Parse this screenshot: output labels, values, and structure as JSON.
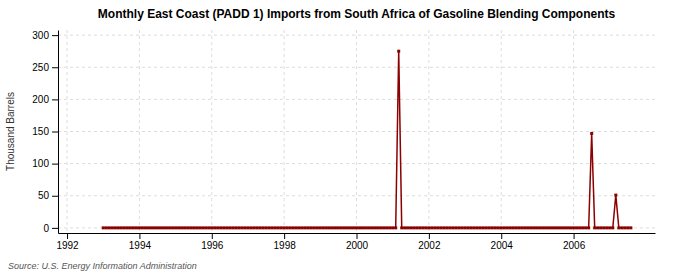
{
  "chart_data": {
    "type": "line",
    "title": "Monthly East Coast (PADD 1) Imports from South Africa of Gasoline Blending Components",
    "ylabel": "Thousand Barrels",
    "annotation": "Source: U.S. Energy Information Administration",
    "color": "#8b0000",
    "marker": "square",
    "grid": true,
    "xlim": [
      1991.75,
      2008.25
    ],
    "xticks": [
      1992,
      1994,
      1996,
      1998,
      2000,
      2002,
      2004,
      2006
    ],
    "ylim": [
      -8,
      308
    ],
    "yticks": [
      0,
      50,
      100,
      150,
      200,
      250,
      300
    ],
    "x": [
      1993,
      1993.0833333333333,
      1993.1666666666667,
      1993.25,
      1993.3333333333333,
      1993.4166666666667,
      1993.5,
      1993.5833333333333,
      1993.6666666666667,
      1993.75,
      1993.8333333333333,
      1993.9166666666667,
      1994,
      1994.0833333333333,
      1994.1666666666667,
      1994.25,
      1994.3333333333333,
      1994.4166666666667,
      1994.5,
      1994.5833333333333,
      1994.6666666666667,
      1994.75,
      1994.8333333333333,
      1994.9166666666667,
      1995,
      1995.0833333333333,
      1995.1666666666667,
      1995.25,
      1995.3333333333333,
      1995.4166666666667,
      1995.5,
      1995.5833333333333,
      1995.6666666666667,
      1995.75,
      1995.8333333333333,
      1995.9166666666667,
      1996,
      1996.0833333333333,
      1996.1666666666667,
      1996.25,
      1996.3333333333333,
      1996.4166666666667,
      1996.5,
      1996.5833333333333,
      1996.6666666666667,
      1996.75,
      1996.8333333333333,
      1996.9166666666667,
      1997,
      1997.0833333333333,
      1997.1666666666667,
      1997.25,
      1997.3333333333333,
      1997.4166666666667,
      1997.5,
      1997.5833333333333,
      1997.6666666666667,
      1997.75,
      1997.8333333333333,
      1997.9166666666667,
      1998,
      1998.0833333333333,
      1998.1666666666667,
      1998.25,
      1998.3333333333333,
      1998.4166666666667,
      1998.5,
      1998.5833333333333,
      1998.6666666666667,
      1998.75,
      1998.8333333333333,
      1998.9166666666667,
      1999,
      1999.0833333333333,
      1999.1666666666667,
      1999.25,
      1999.3333333333333,
      1999.4166666666667,
      1999.5,
      1999.5833333333333,
      1999.6666666666667,
      1999.75,
      1999.8333333333333,
      1999.9166666666667,
      2000,
      2000.0833333333333,
      2000.1666666666667,
      2000.25,
      2000.3333333333333,
      2000.4166666666667,
      2000.5,
      2000.5833333333333,
      2000.6666666666667,
      2000.75,
      2000.8333333333333,
      2000.9166666666667,
      2001,
      2001.0833333333333,
      2001.1666666666667,
      2001.25,
      2001.3333333333333,
      2001.4166666666667,
      2001.5,
      2001.5833333333333,
      2001.6666666666667,
      2001.75,
      2001.8333333333333,
      2001.9166666666667,
      2002,
      2002.0833333333333,
      2002.1666666666667,
      2002.25,
      2002.3333333333333,
      2002.4166666666667,
      2002.5,
      2002.5833333333333,
      2002.6666666666667,
      2002.75,
      2002.8333333333333,
      2002.9166666666667,
      2003,
      2003.0833333333333,
      2003.1666666666667,
      2003.25,
      2003.3333333333333,
      2003.4166666666667,
      2003.5,
      2003.5833333333333,
      2003.6666666666667,
      2003.75,
      2003.8333333333333,
      2003.9166666666667,
      2004,
      2004.0833333333333,
      2004.1666666666667,
      2004.25,
      2004.3333333333333,
      2004.4166666666667,
      2004.5,
      2004.5833333333333,
      2004.6666666666667,
      2004.75,
      2004.8333333333333,
      2004.9166666666667,
      2005,
      2005.0833333333333,
      2005.1666666666667,
      2005.25,
      2005.3333333333333,
      2005.4166666666667,
      2005.5,
      2005.5833333333333,
      2005.6666666666667,
      2005.75,
      2005.8333333333333,
      2005.9166666666667,
      2006,
      2006.0833333333333,
      2006.1666666666667,
      2006.25,
      2006.3333333333333,
      2006.4166666666667,
      2006.5,
      2006.5833333333333,
      2006.6666666666667,
      2006.75,
      2006.8333333333333,
      2006.9166666666667,
      2007,
      2007.0833333333333,
      2007.1666666666667,
      2007.25,
      2007.3333333333333,
      2007.4166666666667,
      2007.5,
      2007.5833333333333
    ],
    "values": [
      0,
      0,
      0,
      0,
      0,
      0,
      0,
      0,
      0,
      0,
      0,
      0,
      0,
      0,
      0,
      0,
      0,
      0,
      0,
      0,
      0,
      0,
      0,
      0,
      0,
      0,
      0,
      0,
      0,
      0,
      0,
      0,
      0,
      0,
      0,
      0,
      0,
      0,
      0,
      0,
      0,
      0,
      0,
      0,
      0,
      0,
      0,
      0,
      0,
      0,
      0,
      0,
      0,
      0,
      0,
      0,
      0,
      0,
      0,
      0,
      0,
      0,
      0,
      0,
      0,
      0,
      0,
      0,
      0,
      0,
      0,
      0,
      0,
      0,
      0,
      0,
      0,
      0,
      0,
      0,
      0,
      0,
      0,
      0,
      0,
      0,
      0,
      0,
      0,
      0,
      0,
      0,
      0,
      0,
      0,
      0,
      0,
      0,
      275,
      0,
      0,
      0,
      0,
      0,
      0,
      0,
      0,
      0,
      0,
      0,
      0,
      0,
      0,
      0,
      0,
      0,
      0,
      0,
      0,
      0,
      0,
      0,
      0,
      0,
      0,
      0,
      0,
      0,
      0,
      0,
      0,
      0,
      0,
      0,
      0,
      0,
      0,
      0,
      0,
      0,
      0,
      0,
      0,
      0,
      0,
      0,
      0,
      0,
      0,
      0,
      0,
      0,
      0,
      0,
      0,
      0,
      0,
      0,
      0,
      0,
      0,
      0,
      147,
      0,
      0,
      0,
      0,
      0,
      0,
      0,
      51,
      0,
      0,
      0,
      0,
      0
    ]
  }
}
